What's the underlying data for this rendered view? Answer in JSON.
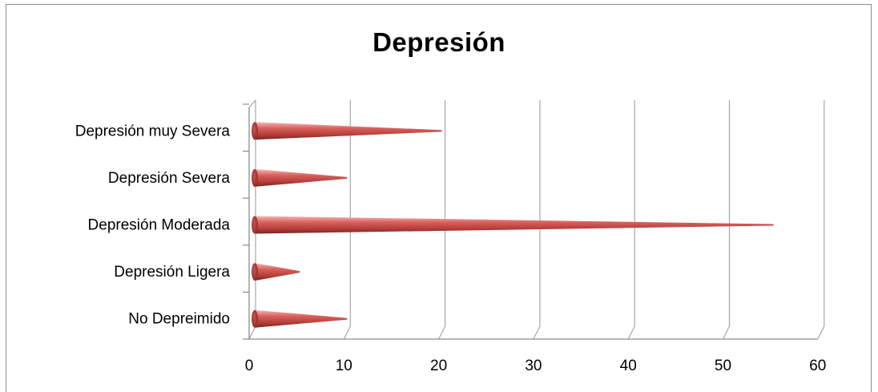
{
  "chart_data": {
    "type": "bar",
    "title": "Depresión",
    "orientation": "horizontal",
    "style": "3d-cone",
    "categories": [
      "No Depreimido",
      "Depresión Ligera",
      "Depresión Moderada",
      "Depresión Severa",
      "Depresión muy Severa"
    ],
    "values": [
      10,
      5,
      55,
      10,
      20
    ],
    "xlim": [
      0,
      60
    ],
    "xticks": [
      "0",
      "10",
      "20",
      "30",
      "40",
      "50",
      "60"
    ],
    "grid": true,
    "legend": "none",
    "bar_color": "#c0504d"
  }
}
